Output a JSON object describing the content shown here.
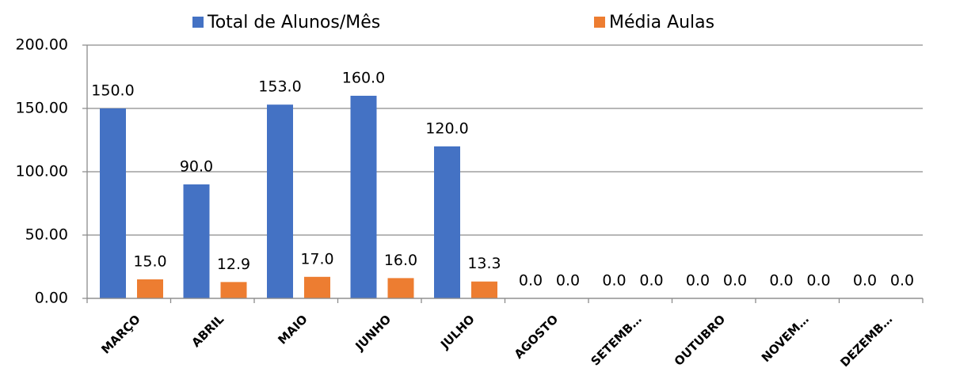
{
  "chart_data": {
    "type": "bar",
    "categories": [
      "MARÇO",
      "ABRIL",
      "MAIO",
      "JUNHO",
      "JULHO",
      "AGOSTO",
      "SETEMB…",
      "OUTUBRO",
      "NOVEM…",
      "DEZEMB…"
    ],
    "series": [
      {
        "name": "Total de Alunos/Mês",
        "color": "#4472c4",
        "values": [
          150,
          90,
          153,
          160,
          120,
          0,
          0,
          0,
          0,
          0
        ],
        "value_labels": [
          "150.0",
          "90.0",
          "153.0",
          "160.0",
          "120.0",
          "0.0",
          "0.0",
          "0.0",
          "0.0",
          "0.0"
        ]
      },
      {
        "name": "Média Aulas",
        "color": "#ed7d31",
        "values": [
          15,
          12.9,
          17,
          16,
          13.3,
          0,
          0,
          0,
          0,
          0
        ],
        "value_labels": [
          "15.0",
          "12.9",
          "17.0",
          "16.0",
          "13.3",
          "0.0",
          "0.0",
          "0.0",
          "0.0",
          "0.0"
        ]
      }
    ],
    "ylim": [
      0,
      200
    ],
    "yticks": [
      {
        "value": 0,
        "label": "0.00"
      },
      {
        "value": 50,
        "label": "50.00"
      },
      {
        "value": 100,
        "label": "100.00"
      },
      {
        "value": 150,
        "label": "150.00"
      },
      {
        "value": 200,
        "label": "200.00"
      }
    ],
    "grid": true,
    "legend": "top"
  }
}
